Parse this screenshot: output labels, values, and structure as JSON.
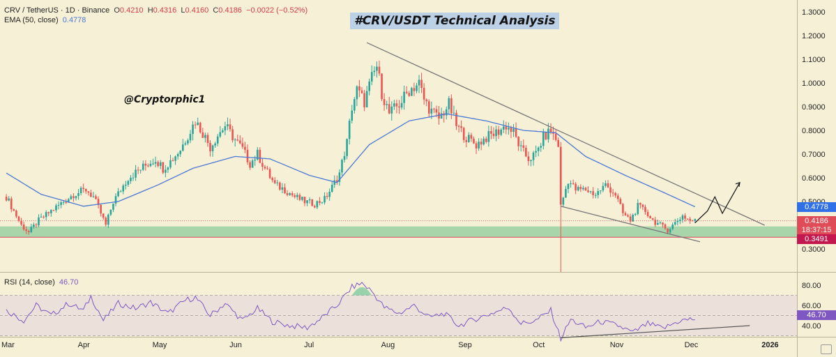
{
  "header": {
    "symbol": "CRV / TetherUS · 1D · Binance",
    "open_label": "O",
    "open": "0.4210",
    "high_label": "H",
    "high": "0.4316",
    "low_label": "L",
    "low": "0.4160",
    "close_label": "C",
    "close": "0.4186",
    "change": "−0.0022 (−0.52%)",
    "ema_label": "EMA (50, close)",
    "ema_value": "0.4778"
  },
  "title": "#CRV/USDT Technical Analysis",
  "handle": "@Cryptorphic1",
  "price_tags": {
    "ema": "0.4778",
    "price": "0.4186",
    "countdown": "18:37:15",
    "support": "0.3491"
  },
  "rsi": {
    "label": "RSI (14, close)",
    "value": "46.70",
    "ticks": [
      "80.00",
      "60.00",
      "40.00"
    ],
    "overbought": 70,
    "oversold": 30
  },
  "colors": {
    "background": "#f6f0d6",
    "up": "#26a69a",
    "down": "#ef5350",
    "ema": "#4a78d6",
    "rsi": "#7e57c2",
    "support_zone": "#9bd0a3",
    "support_line": "#e0455a",
    "trendline": "#777777",
    "title_bg": "#bcd0e6"
  },
  "chart_data": {
    "type": "candlestick",
    "title": "#CRV/USDT Technical Analysis",
    "symbol": "CRV / TetherUS",
    "timeframe": "1D",
    "exchange": "Binance",
    "y_ticks": [
      "1.3000",
      "1.2000",
      "1.1000",
      "1.0000",
      "0.9000",
      "0.8000",
      "0.7000",
      "0.6000",
      "0.5000",
      "0.4000",
      "0.3000"
    ],
    "ylim": [
      0.25,
      1.32
    ],
    "x_ticks": [
      "Mar",
      "Apr",
      "May",
      "Jun",
      "Jul",
      "Aug",
      "Sep",
      "Oct",
      "Nov",
      "Dec",
      "2026"
    ],
    "close_anchors": [
      [
        "2025-03-01",
        0.52
      ],
      [
        "2025-03-04",
        0.46
      ],
      [
        "2025-03-07",
        0.4
      ],
      [
        "2025-03-10",
        0.37
      ],
      [
        "2025-03-14",
        0.42
      ],
      [
        "2025-03-19",
        0.46
      ],
      [
        "2025-03-24",
        0.5
      ],
      [
        "2025-03-28",
        0.53
      ],
      [
        "2025-04-02",
        0.55
      ],
      [
        "2025-04-05",
        0.52
      ],
      [
        "2025-04-08",
        0.45
      ],
      [
        "2025-04-10",
        0.4
      ],
      [
        "2025-04-13",
        0.5
      ],
      [
        "2025-04-16",
        0.55
      ],
      [
        "2025-04-19",
        0.6
      ],
      [
        "2025-04-23",
        0.63
      ],
      [
        "2025-04-27",
        0.66
      ],
      [
        "2025-04-30",
        0.68
      ],
      [
        "2025-05-03",
        0.64
      ],
      [
        "2025-05-06",
        0.67
      ],
      [
        "2025-05-10",
        0.72
      ],
      [
        "2025-05-13",
        0.78
      ],
      [
        "2025-05-16",
        0.84
      ],
      [
        "2025-05-19",
        0.79
      ],
      [
        "2025-05-22",
        0.73
      ],
      [
        "2025-05-25",
        0.78
      ],
      [
        "2025-05-28",
        0.82
      ],
      [
        "2025-06-01",
        0.76
      ],
      [
        "2025-06-04",
        0.72
      ],
      [
        "2025-06-07",
        0.66
      ],
      [
        "2025-06-10",
        0.7
      ],
      [
        "2025-06-13",
        0.64
      ],
      [
        "2025-06-17",
        0.57
      ],
      [
        "2025-06-21",
        0.55
      ],
      [
        "2025-06-25",
        0.52
      ],
      [
        "2025-06-29",
        0.5
      ],
      [
        "2025-07-03",
        0.49
      ],
      [
        "2025-07-07",
        0.51
      ],
      [
        "2025-07-10",
        0.56
      ],
      [
        "2025-07-13",
        0.62
      ],
      [
        "2025-07-16",
        0.75
      ],
      [
        "2025-07-18",
        0.9
      ],
      [
        "2025-07-20",
        0.97
      ],
      [
        "2025-07-23",
        0.92
      ],
      [
        "2025-07-26",
        1.02
      ],
      [
        "2025-07-28",
        1.07
      ],
      [
        "2025-07-30",
        0.96
      ],
      [
        "2025-08-02",
        0.87
      ],
      [
        "2025-08-06",
        0.91
      ],
      [
        "2025-08-10",
        0.97
      ],
      [
        "2025-08-14",
        1.0
      ],
      [
        "2025-08-16",
        0.93
      ],
      [
        "2025-08-19",
        0.88
      ],
      [
        "2025-08-22",
        0.85
      ],
      [
        "2025-08-26",
        0.91
      ],
      [
        "2025-08-29",
        0.82
      ],
      [
        "2025-09-02",
        0.77
      ],
      [
        "2025-09-06",
        0.74
      ],
      [
        "2025-09-10",
        0.77
      ],
      [
        "2025-09-14",
        0.79
      ],
      [
        "2025-09-18",
        0.82
      ],
      [
        "2025-09-21",
        0.79
      ],
      [
        "2025-09-24",
        0.72
      ],
      [
        "2025-09-27",
        0.68
      ],
      [
        "2025-09-30",
        0.7
      ],
      [
        "2025-10-03",
        0.77
      ],
      [
        "2025-10-06",
        0.8
      ],
      [
        "2025-10-09",
        0.74
      ],
      [
        "2025-10-10",
        0.48
      ],
      [
        "2025-10-13",
        0.59
      ],
      [
        "2025-10-16",
        0.55
      ],
      [
        "2025-10-20",
        0.55
      ],
      [
        "2025-10-24",
        0.53
      ],
      [
        "2025-10-28",
        0.57
      ],
      [
        "2025-11-01",
        0.53
      ],
      [
        "2025-11-04",
        0.45
      ],
      [
        "2025-11-07",
        0.42
      ],
      [
        "2025-11-10",
        0.48
      ],
      [
        "2025-11-13",
        0.46
      ],
      [
        "2025-11-16",
        0.42
      ],
      [
        "2025-11-19",
        0.4
      ],
      [
        "2025-11-22",
        0.38
      ],
      [
        "2025-11-25",
        0.41
      ],
      [
        "2025-11-28",
        0.44
      ],
      [
        "2025-12-01",
        0.42
      ],
      [
        "2025-12-03",
        0.4186
      ]
    ],
    "ema50_anchors": [
      [
        "2025-03-01",
        0.62
      ],
      [
        "2025-03-15",
        0.53
      ],
      [
        "2025-04-01",
        0.48
      ],
      [
        "2025-04-15",
        0.5
      ],
      [
        "2025-05-01",
        0.57
      ],
      [
        "2025-05-15",
        0.64
      ],
      [
        "2025-06-01",
        0.69
      ],
      [
        "2025-06-15",
        0.68
      ],
      [
        "2025-07-01",
        0.61
      ],
      [
        "2025-07-12",
        0.58
      ],
      [
        "2025-07-25",
        0.74
      ],
      [
        "2025-08-10",
        0.84
      ],
      [
        "2025-08-25",
        0.87
      ],
      [
        "2025-09-10",
        0.84
      ],
      [
        "2025-09-25",
        0.8
      ],
      [
        "2025-10-08",
        0.79
      ],
      [
        "2025-10-20",
        0.69
      ],
      [
        "2025-11-05",
        0.61
      ],
      [
        "2025-11-20",
        0.54
      ],
      [
        "2025-12-03",
        0.4778
      ]
    ],
    "support_zone": [
      0.3491,
      0.395
    ],
    "support_level": 0.3491,
    "resistance_trendline": [
      [
        "2025-07-24",
        1.17
      ],
      [
        "2025-12-31",
        0.4
      ]
    ],
    "support_trendline": [
      [
        "2025-10-10",
        0.48
      ],
      [
        "2025-12-05",
        0.33
      ]
    ],
    "projection_path": [
      [
        "2025-12-03",
        0.41
      ],
      [
        "2025-12-08",
        0.46
      ],
      [
        "2025-12-11",
        0.52
      ],
      [
        "2025-12-14",
        0.45
      ],
      [
        "2025-12-21",
        0.58
      ]
    ],
    "rsi_anchors": [
      [
        "2025-03-01",
        55
      ],
      [
        "2025-03-08",
        45
      ],
      [
        "2025-03-13",
        60
      ],
      [
        "2025-03-19",
        50
      ],
      [
        "2025-03-26",
        62
      ],
      [
        "2025-04-01",
        55
      ],
      [
        "2025-04-04",
        69
      ],
      [
        "2025-04-09",
        45
      ],
      [
        "2025-04-15",
        62
      ],
      [
        "2025-04-22",
        57
      ],
      [
        "2025-04-28",
        63
      ],
      [
        "2025-05-05",
        52
      ],
      [
        "2025-05-12",
        65
      ],
      [
        "2025-05-16",
        68
      ],
      [
        "2025-05-22",
        50
      ],
      [
        "2025-05-28",
        62
      ],
      [
        "2025-06-04",
        45
      ],
      [
        "2025-06-10",
        57
      ],
      [
        "2025-06-16",
        44
      ],
      [
        "2025-06-23",
        40
      ],
      [
        "2025-06-30",
        38
      ],
      [
        "2025-07-05",
        46
      ],
      [
        "2025-07-12",
        60
      ],
      [
        "2025-07-18",
        78
      ],
      [
        "2025-07-22",
        82
      ],
      [
        "2025-07-26",
        74
      ],
      [
        "2025-07-31",
        58
      ],
      [
        "2025-08-06",
        52
      ],
      [
        "2025-08-12",
        60
      ],
      [
        "2025-08-18",
        48
      ],
      [
        "2025-08-24",
        52
      ],
      [
        "2025-08-30",
        40
      ],
      [
        "2025-09-05",
        46
      ],
      [
        "2025-09-12",
        52
      ],
      [
        "2025-09-19",
        58
      ],
      [
        "2025-09-24",
        42
      ],
      [
        "2025-09-30",
        45
      ],
      [
        "2025-10-06",
        55
      ],
      [
        "2025-10-10",
        27
      ],
      [
        "2025-10-14",
        46
      ],
      [
        "2025-10-20",
        38
      ],
      [
        "2025-10-26",
        44
      ],
      [
        "2025-11-02",
        40
      ],
      [
        "2025-11-08",
        33
      ],
      [
        "2025-11-14",
        42
      ],
      [
        "2025-11-20",
        37
      ],
      [
        "2025-11-27",
        45
      ],
      [
        "2025-12-03",
        46.7
      ]
    ],
    "rsi_trendline": [
      [
        "2025-10-10",
        28
      ],
      [
        "2025-12-25",
        40
      ]
    ]
  }
}
